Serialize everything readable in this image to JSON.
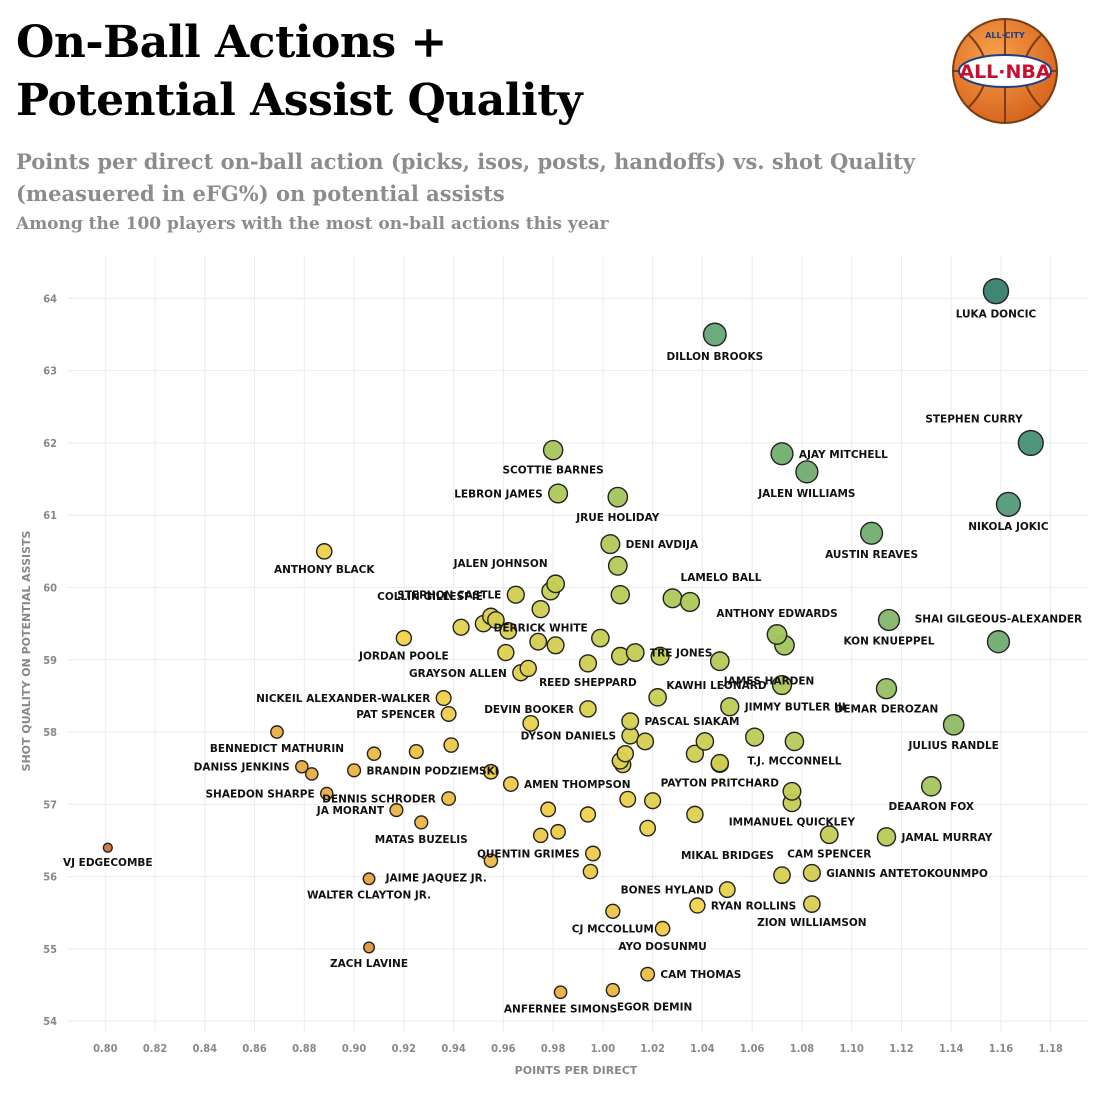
{
  "header": {
    "title_line1": "On-Ball Actions +",
    "title_line2": "Potential Assist Quality",
    "subtitle": "Points per direct on-ball action (picks, isos, posts, handoffs) vs. shot Quality (measuered in eFG%) on potential assists",
    "note": "Among the 100 players with the most on-ball actions this year"
  },
  "logo": {
    "top_text": "ALL·CITY",
    "main_text": "ALL·NBA",
    "icon": "basketball-logo"
  },
  "chart_data": {
    "type": "scatter",
    "title": "On-Ball Actions + Potential Assist Quality",
    "xlabel": "POINTS PER DIRECT",
    "ylabel": "SHOT QUALITY ON POTENTIAL ASSISTS",
    "xlim": [
      0.785,
      1.195
    ],
    "ylim": [
      53.85,
      64.6
    ],
    "xticks": [
      "0.80",
      "0.82",
      "0.84",
      "0.86",
      "0.88",
      "0.90",
      "0.92",
      "0.94",
      "0.96",
      "0.98",
      "1.00",
      "1.02",
      "1.04",
      "1.06",
      "1.08",
      "1.10",
      "1.12",
      "1.14",
      "1.16",
      "1.18"
    ],
    "yticks": [
      "54",
      "55",
      "56",
      "57",
      "58",
      "59",
      "60",
      "61",
      "62",
      "63",
      "64"
    ],
    "grid": true,
    "color_scale": [
      "#c0502e",
      "#e89a3e",
      "#f0d34a",
      "#a9c85a",
      "#5aa27a",
      "#2f7a6a"
    ],
    "points": [
      {
        "name": "LUKA DONCIC",
        "x": 1.158,
        "y": 64.1,
        "label_pos": "below"
      },
      {
        "name": "DILLON BROOKS",
        "x": 1.045,
        "y": 63.5,
        "label_pos": "below"
      },
      {
        "name": "STEPHEN CURRY",
        "x": 1.172,
        "y": 62.0,
        "label_pos": "above-left"
      },
      {
        "name": "AJAY MITCHELL",
        "x": 1.072,
        "y": 61.85,
        "label_pos": "right"
      },
      {
        "name": "SCOTTIE BARNES",
        "x": 0.98,
        "y": 61.9,
        "label_pos": "below"
      },
      {
        "name": "JALEN WILLIAMS",
        "x": 1.082,
        "y": 61.6,
        "label_pos": "below"
      },
      {
        "name": "LEBRON JAMES",
        "x": 0.982,
        "y": 61.3,
        "label_pos": "left"
      },
      {
        "name": "JRUE HOLIDAY",
        "x": 1.006,
        "y": 61.25,
        "label_pos": "below"
      },
      {
        "name": "NIKOLA JOKIC",
        "x": 1.163,
        "y": 61.15,
        "label_pos": "below"
      },
      {
        "name": "AUSTIN REAVES",
        "x": 1.108,
        "y": 60.75,
        "label_pos": "below"
      },
      {
        "name": "DENI AVDIJA",
        "x": 1.003,
        "y": 60.6,
        "label_pos": "right"
      },
      {
        "name": "ANTHONY BLACK",
        "x": 0.888,
        "y": 60.5,
        "label_pos": "below"
      },
      {
        "name": "",
        "x": 1.006,
        "y": 60.3
      },
      {
        "name": "JALEN JOHNSON",
        "x": 0.981,
        "y": 60.05,
        "label_pos": "above-left"
      },
      {
        "name": "",
        "x": 0.979,
        "y": 59.95
      },
      {
        "name": "STEPHON CASTLE",
        "x": 0.965,
        "y": 59.9,
        "label_pos": "left"
      },
      {
        "name": "",
        "x": 1.007,
        "y": 59.9
      },
      {
        "name": "LAMELO BALL",
        "x": 1.028,
        "y": 59.85,
        "label_pos": "above-right"
      },
      {
        "name": "",
        "x": 1.035,
        "y": 59.8
      },
      {
        "name": "DERRICK WHITE",
        "x": 0.975,
        "y": 59.7,
        "label_pos": "below"
      },
      {
        "name": "COLLIN GILLESPIE",
        "x": 0.955,
        "y": 59.6,
        "label_pos": "above-left"
      },
      {
        "name": "",
        "x": 0.957,
        "y": 59.55
      },
      {
        "name": "",
        "x": 0.952,
        "y": 59.5
      },
      {
        "name": "",
        "x": 0.943,
        "y": 59.45
      },
      {
        "name": "",
        "x": 0.962,
        "y": 59.4
      },
      {
        "name": "KON KNUEPPEL",
        "x": 1.115,
        "y": 59.55,
        "label_pos": "below"
      },
      {
        "name": "ANTHONY EDWARDS",
        "x": 1.07,
        "y": 59.35,
        "label_pos": "above"
      },
      {
        "name": "SHAI GILGEOUS-ALEXANDER",
        "x": 1.159,
        "y": 59.25,
        "label_pos": "above"
      },
      {
        "name": "",
        "x": 1.073,
        "y": 59.2
      },
      {
        "name": "TRE JONES",
        "x": 1.013,
        "y": 59.1,
        "label_pos": "right"
      },
      {
        "name": "JORDAN POOLE",
        "x": 0.92,
        "y": 59.3,
        "label_pos": "below"
      },
      {
        "name": "",
        "x": 0.999,
        "y": 59.3
      },
      {
        "name": "",
        "x": 0.974,
        "y": 59.25
      },
      {
        "name": "",
        "x": 0.981,
        "y": 59.2
      },
      {
        "name": "",
        "x": 0.961,
        "y": 59.1
      },
      {
        "name": "",
        "x": 1.007,
        "y": 59.05
      },
      {
        "name": "",
        "x": 1.023,
        "y": 59.05
      },
      {
        "name": "JAMES HARDEN",
        "x": 1.047,
        "y": 58.98,
        "label_pos": "below-right"
      },
      {
        "name": "REED SHEPPARD",
        "x": 0.994,
        "y": 58.95,
        "label_pos": "below"
      },
      {
        "name": "",
        "x": 0.97,
        "y": 58.88
      },
      {
        "name": "GRAYSON ALLEN",
        "x": 0.967,
        "y": 58.82,
        "label_pos": "left"
      },
      {
        "name": "KAWHI LEONARD",
        "x": 1.072,
        "y": 58.65,
        "label_pos": "left"
      },
      {
        "name": "DEMAR DEROZAN",
        "x": 1.114,
        "y": 58.6,
        "label_pos": "below"
      },
      {
        "name": "",
        "x": 1.022,
        "y": 58.48
      },
      {
        "name": "NICKEIL ALEXANDER-WALKER",
        "x": 0.936,
        "y": 58.47,
        "label_pos": "left"
      },
      {
        "name": "JIMMY BUTLER III",
        "x": 1.051,
        "y": 58.35,
        "label_pos": "right"
      },
      {
        "name": "DEVIN BOOKER",
        "x": 0.994,
        "y": 58.32,
        "label_pos": "left"
      },
      {
        "name": "PAT SPENCER",
        "x": 0.938,
        "y": 58.25,
        "label_pos": "left"
      },
      {
        "name": "PASCAL SIAKAM",
        "x": 1.011,
        "y": 58.15,
        "label_pos": "right"
      },
      {
        "name": "",
        "x": 0.971,
        "y": 58.12
      },
      {
        "name": "JULIUS RANDLE",
        "x": 1.141,
        "y": 58.1,
        "label_pos": "below"
      },
      {
        "name": "BENNEDICT MATHURIN",
        "x": 0.869,
        "y": 58.0,
        "label_pos": "below"
      },
      {
        "name": "DYSON DANIELS",
        "x": 1.011,
        "y": 57.95,
        "label_pos": "left"
      },
      {
        "name": "",
        "x": 1.061,
        "y": 57.93
      },
      {
        "name": "",
        "x": 1.017,
        "y": 57.87
      },
      {
        "name": "",
        "x": 1.041,
        "y": 57.87
      },
      {
        "name": "T.J. MCCONNELL",
        "x": 1.077,
        "y": 57.87,
        "label_pos": "below"
      },
      {
        "name": "",
        "x": 0.939,
        "y": 57.82
      },
      {
        "name": "",
        "x": 0.925,
        "y": 57.73
      },
      {
        "name": "",
        "x": 0.908,
        "y": 57.7
      },
      {
        "name": "",
        "x": 1.009,
        "y": 57.7
      },
      {
        "name": "",
        "x": 1.037,
        "y": 57.7
      },
      {
        "name": "",
        "x": 1.007,
        "y": 57.6
      },
      {
        "name": "",
        "x": 1.008,
        "y": 57.55
      },
      {
        "name": "",
        "x": 1.047,
        "y": 57.57
      },
      {
        "name": "DANISS JENKINS",
        "x": 0.879,
        "y": 57.52,
        "label_pos": "left"
      },
      {
        "name": "",
        "x": 0.883,
        "y": 57.42
      },
      {
        "name": "BRANDIN PODZIEMSKI",
        "x": 0.9,
        "y": 57.47,
        "label_pos": "right"
      },
      {
        "name": "",
        "x": 0.955,
        "y": 57.45
      },
      {
        "name": "AMEN THOMPSON",
        "x": 0.963,
        "y": 57.28,
        "label_pos": "right"
      },
      {
        "name": "PAYTON PRITCHARD",
        "x": 1.047,
        "y": 57.56,
        "label_pos": "below"
      },
      {
        "name": "DEAARON FOX",
        "x": 1.132,
        "y": 57.25,
        "label_pos": "below"
      },
      {
        "name": "",
        "x": 1.076,
        "y": 57.18
      },
      {
        "name": "SHAEDON SHARPE",
        "x": 0.889,
        "y": 57.15,
        "label_pos": "left"
      },
      {
        "name": "DENNIS SCHRODER",
        "x": 0.938,
        "y": 57.08,
        "label_pos": "left"
      },
      {
        "name": "",
        "x": 1.01,
        "y": 57.07
      },
      {
        "name": "",
        "x": 1.02,
        "y": 57.05
      },
      {
        "name": "IMMANUEL QUICKLEY",
        "x": 1.076,
        "y": 57.02,
        "label_pos": "below"
      },
      {
        "name": "JA MORANT",
        "x": 0.917,
        "y": 56.92,
        "label_pos": "left"
      },
      {
        "name": "",
        "x": 0.978,
        "y": 56.93
      },
      {
        "name": "",
        "x": 0.994,
        "y": 56.86
      },
      {
        "name": "",
        "x": 1.037,
        "y": 56.86
      },
      {
        "name": "MATAS BUZELIS",
        "x": 0.927,
        "y": 56.75,
        "label_pos": "below"
      },
      {
        "name": "",
        "x": 1.018,
        "y": 56.67
      },
      {
        "name": "",
        "x": 0.982,
        "y": 56.62
      },
      {
        "name": "",
        "x": 0.975,
        "y": 56.57
      },
      {
        "name": "CAM SPENCER",
        "x": 1.091,
        "y": 56.58,
        "label_pos": "below"
      },
      {
        "name": "JAMAL MURRAY",
        "x": 1.114,
        "y": 56.55,
        "label_pos": "right"
      },
      {
        "name": "VJ EDGECOMBE",
        "x": 0.801,
        "y": 56.4,
        "label_pos": "below"
      },
      {
        "name": "QUENTIN GRIMES",
        "x": 0.996,
        "y": 56.32,
        "label_pos": "left"
      },
      {
        "name": "JAIME JAQUEZ JR.",
        "x": 0.955,
        "y": 56.22,
        "label_pos": "below-left"
      },
      {
        "name": "MIKAL BRIDGES",
        "x": 1.072,
        "y": 56.02,
        "label_pos": "above-left"
      },
      {
        "name": "GIANNIS ANTETOKOUNMPO",
        "x": 1.084,
        "y": 56.05,
        "label_pos": "right"
      },
      {
        "name": "",
        "x": 0.995,
        "y": 56.07
      },
      {
        "name": "WALTER CLAYTON JR.",
        "x": 0.906,
        "y": 55.97,
        "label_pos": "below"
      },
      {
        "name": "BONES HYLAND",
        "x": 1.05,
        "y": 55.82,
        "label_pos": "left"
      },
      {
        "name": "RYAN ROLLINS",
        "x": 1.038,
        "y": 55.6,
        "label_pos": "right"
      },
      {
        "name": "ZION WILLIAMSON",
        "x": 1.084,
        "y": 55.62,
        "label_pos": "below"
      },
      {
        "name": "CJ MCCOLLUM",
        "x": 1.004,
        "y": 55.52,
        "label_pos": "below"
      },
      {
        "name": "AYO DOSUNMU",
        "x": 1.024,
        "y": 55.28,
        "label_pos": "below"
      },
      {
        "name": "ZACH LAVINE",
        "x": 0.906,
        "y": 55.02,
        "label_pos": "below"
      },
      {
        "name": "CAM THOMAS",
        "x": 1.018,
        "y": 54.65,
        "label_pos": "right"
      },
      {
        "name": "EGOR DEMIN",
        "x": 1.004,
        "y": 54.43,
        "label_pos": "below-right"
      },
      {
        "name": "ANFERNEE SIMONS",
        "x": 0.983,
        "y": 54.4,
        "label_pos": "below"
      }
    ]
  }
}
